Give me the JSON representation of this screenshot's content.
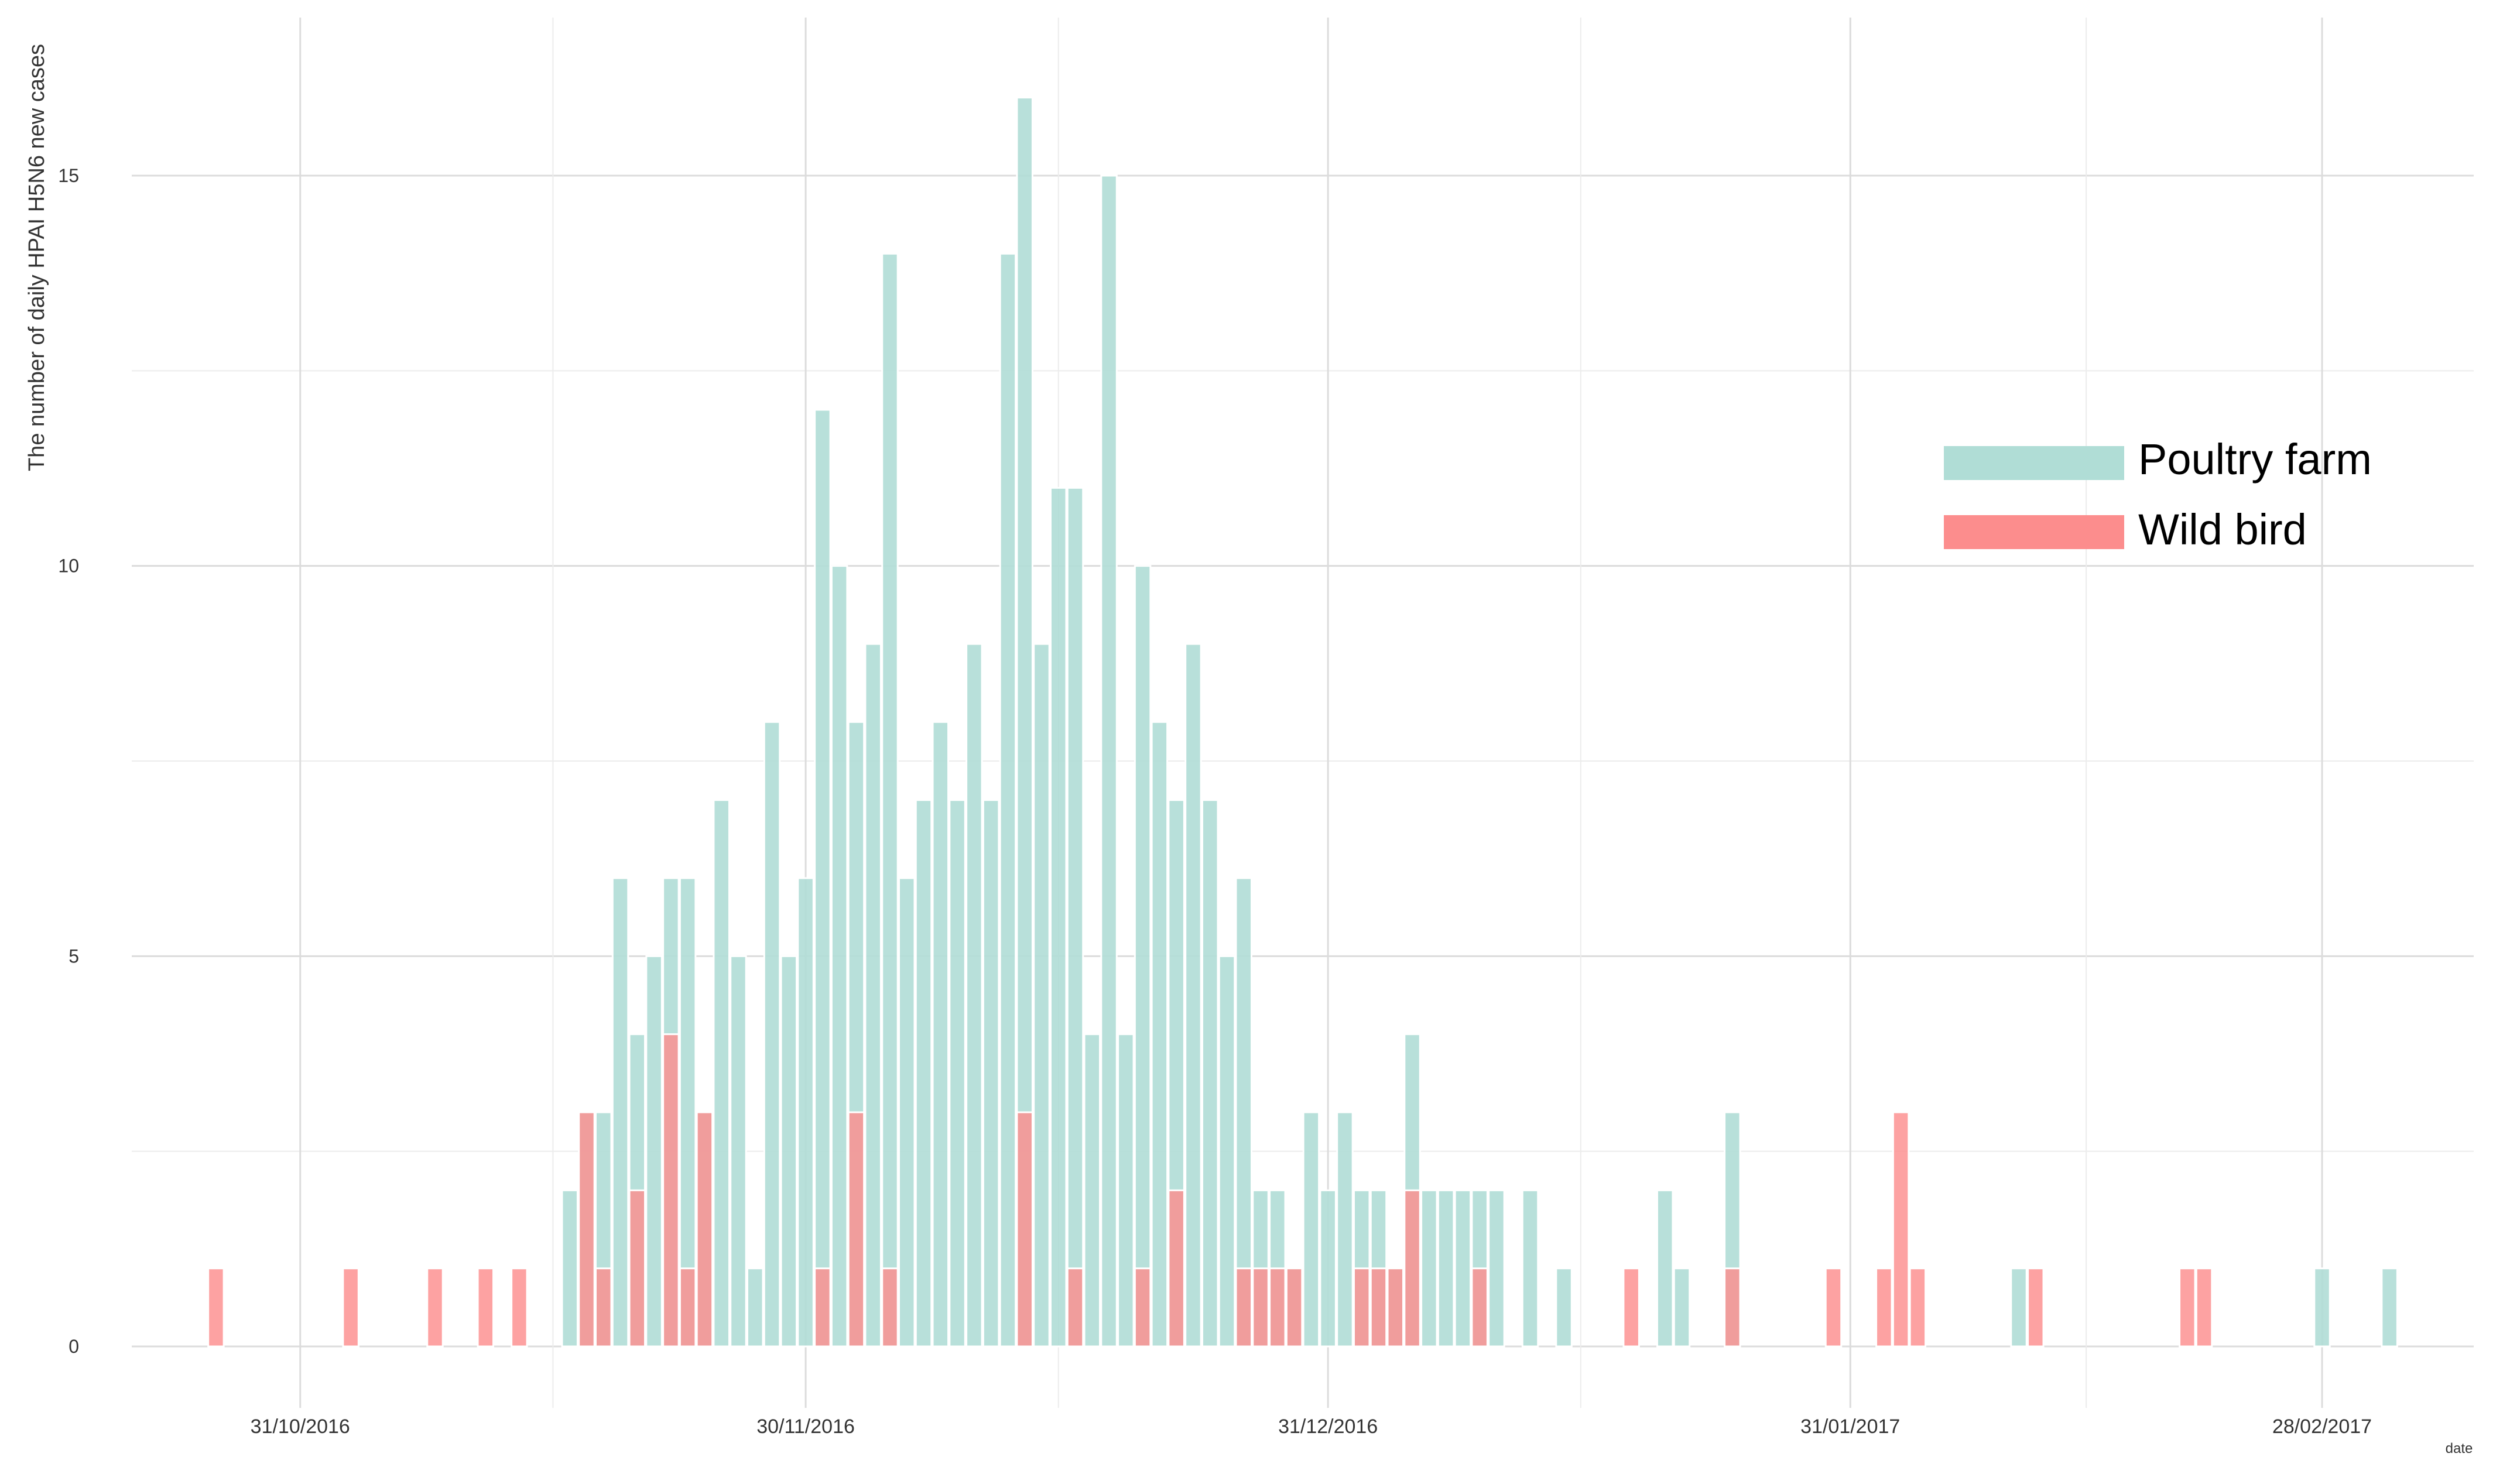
{
  "chart_data": {
    "type": "bar",
    "ylabel": "The number of daily HPAI H5N6 new cases",
    "xlabel": "date",
    "ylim": [
      0,
      16
    ],
    "xlim": [
      "2016-10-21",
      "2017-03-09"
    ],
    "yticks": [
      0,
      5,
      10,
      15
    ],
    "xticks": [
      {
        "date": "2016-10-31",
        "label": "31/10/2016"
      },
      {
        "date": "2016-11-30",
        "label": "30/11/2016"
      },
      {
        "date": "2016-12-31",
        "label": "31/12/2016"
      },
      {
        "date": "2017-01-31",
        "label": "31/01/2017"
      },
      {
        "date": "2017-02-28",
        "label": "28/02/2017"
      }
    ],
    "grid": true,
    "legend_position": "right",
    "colors": {
      "poultry": "#b0ddd6",
      "wild": "#fc8d8d",
      "grid": "#dcdcdc"
    },
    "series": [
      {
        "name": "Poultry farm",
        "points": [
          [
            "2016-11-16",
            2
          ],
          [
            "2016-11-17",
            3
          ],
          [
            "2016-11-18",
            3
          ],
          [
            "2016-11-19",
            6
          ],
          [
            "2016-11-20",
            4
          ],
          [
            "2016-11-21",
            5
          ],
          [
            "2016-11-22",
            6
          ],
          [
            "2016-11-23",
            6
          ],
          [
            "2016-11-24",
            3
          ],
          [
            "2016-11-25",
            7
          ],
          [
            "2016-11-26",
            5
          ],
          [
            "2016-11-27",
            1
          ],
          [
            "2016-11-28",
            8
          ],
          [
            "2016-11-29",
            5
          ],
          [
            "2016-11-30",
            6
          ],
          [
            "2016-12-01",
            12
          ],
          [
            "2016-12-02",
            10
          ],
          [
            "2016-12-03",
            8
          ],
          [
            "2016-12-04",
            9
          ],
          [
            "2016-12-05",
            14
          ],
          [
            "2016-12-06",
            6
          ],
          [
            "2016-12-07",
            7
          ],
          [
            "2016-12-08",
            8
          ],
          [
            "2016-12-09",
            7
          ],
          [
            "2016-12-10",
            9
          ],
          [
            "2016-12-11",
            7
          ],
          [
            "2016-12-12",
            14
          ],
          [
            "2016-12-13",
            16
          ],
          [
            "2016-12-14",
            9
          ],
          [
            "2016-12-15",
            11
          ],
          [
            "2016-12-16",
            11
          ],
          [
            "2016-12-17",
            4
          ],
          [
            "2016-12-18",
            15
          ],
          [
            "2016-12-19",
            4
          ],
          [
            "2016-12-20",
            10
          ],
          [
            "2016-12-21",
            8
          ],
          [
            "2016-12-22",
            7
          ],
          [
            "2016-12-23",
            9
          ],
          [
            "2016-12-24",
            7
          ],
          [
            "2016-12-25",
            5
          ],
          [
            "2016-12-26",
            6
          ],
          [
            "2016-12-27",
            2
          ],
          [
            "2016-12-28",
            2
          ],
          [
            "2016-12-29",
            1
          ],
          [
            "2016-12-30",
            3
          ],
          [
            "2016-12-31",
            2
          ],
          [
            "2017-01-01",
            3
          ],
          [
            "2017-01-02",
            2
          ],
          [
            "2017-01-03",
            2
          ],
          [
            "2017-01-04",
            1
          ],
          [
            "2017-01-05",
            4
          ],
          [
            "2017-01-06",
            2
          ],
          [
            "2017-01-07",
            2
          ],
          [
            "2017-01-08",
            2
          ],
          [
            "2017-01-09",
            2
          ],
          [
            "2017-01-10",
            2
          ],
          [
            "2017-01-12",
            2
          ],
          [
            "2017-01-14",
            1
          ],
          [
            "2017-01-20",
            2
          ],
          [
            "2017-01-21",
            1
          ],
          [
            "2017-01-24",
            3
          ],
          [
            "2017-02-10",
            1
          ],
          [
            "2017-02-28",
            1
          ],
          [
            "2017-03-04",
            1
          ]
        ]
      },
      {
        "name": "Wild bird",
        "points": [
          [
            "2016-10-26",
            1
          ],
          [
            "2016-11-03",
            1
          ],
          [
            "2016-11-08",
            1
          ],
          [
            "2016-11-11",
            1
          ],
          [
            "2016-11-13",
            1
          ],
          [
            "2016-11-14",
            0
          ],
          [
            "2016-11-17",
            3
          ],
          [
            "2016-11-18",
            1
          ],
          [
            "2016-11-20",
            2
          ],
          [
            "2016-11-22",
            4
          ],
          [
            "2016-11-23",
            1
          ],
          [
            "2016-11-24",
            3
          ],
          [
            "2016-12-01",
            1
          ],
          [
            "2016-12-03",
            3
          ],
          [
            "2016-12-05",
            1
          ],
          [
            "2016-12-13",
            3
          ],
          [
            "2016-12-16",
            1
          ],
          [
            "2016-12-20",
            1
          ],
          [
            "2016-12-22",
            2
          ],
          [
            "2016-12-26",
            1
          ],
          [
            "2016-12-27",
            1
          ],
          [
            "2016-12-28",
            1
          ],
          [
            "2016-12-29",
            1
          ],
          [
            "2017-01-02",
            1
          ],
          [
            "2017-01-03",
            1
          ],
          [
            "2017-01-04",
            1
          ],
          [
            "2017-01-05",
            2
          ],
          [
            "2017-01-09",
            1
          ],
          [
            "2017-01-18",
            1
          ],
          [
            "2017-01-24",
            1
          ],
          [
            "2017-01-30",
            1
          ],
          [
            "2017-02-02",
            1
          ],
          [
            "2017-02-03",
            3
          ],
          [
            "2017-02-04",
            1
          ],
          [
            "2017-02-11",
            1
          ],
          [
            "2017-02-20",
            1
          ],
          [
            "2017-02-21",
            1
          ]
        ]
      }
    ]
  }
}
